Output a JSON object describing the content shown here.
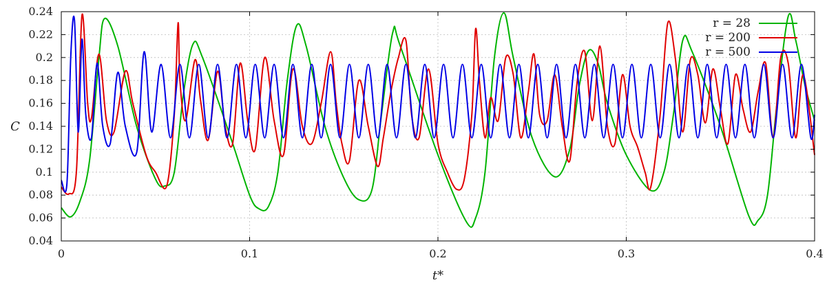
{
  "chart_data": {
    "type": "line",
    "xlabel": "t*",
    "ylabel": "C",
    "xlim": [
      0,
      0.4
    ],
    "ylim": [
      0.04,
      0.24
    ],
    "xticks": [
      "0",
      "0.1",
      "0.2",
      "0.3",
      "0.4"
    ],
    "yticks": [
      "0.04",
      "0.06",
      "0.08",
      "0.1",
      "0.12",
      "0.14",
      "0.16",
      "0.18",
      "0.2",
      "0.22",
      "0.24"
    ],
    "grid": true,
    "legend_position": "top-right",
    "series": [
      {
        "name": "r = 28",
        "color": "#00b400",
        "x": [
          0,
          0.005,
          0.01,
          0.015,
          0.02,
          0.023,
          0.03,
          0.04,
          0.05,
          0.055,
          0.06,
          0.065,
          0.07,
          0.075,
          0.09,
          0.1,
          0.105,
          0.11,
          0.115,
          0.12,
          0.125,
          0.13,
          0.14,
          0.15,
          0.158,
          0.165,
          0.17,
          0.176,
          0.18,
          0.2,
          0.215,
          0.22,
          0.225,
          0.23,
          0.235,
          0.24,
          0.25,
          0.262,
          0.27,
          0.275,
          0.28,
          0.285,
          0.29,
          0.3,
          0.313,
          0.32,
          0.325,
          0.33,
          0.335,
          0.35,
          0.365,
          0.37,
          0.375,
          0.38,
          0.386,
          0.39,
          0.395,
          0.4
        ],
        "values": [
          0.069,
          0.061,
          0.075,
          0.11,
          0.2,
          0.234,
          0.21,
          0.14,
          0.094,
          0.088,
          0.1,
          0.17,
          0.212,
          0.2,
          0.13,
          0.08,
          0.068,
          0.07,
          0.1,
          0.18,
          0.228,
          0.21,
          0.14,
          0.095,
          0.076,
          0.085,
          0.15,
          0.222,
          0.21,
          0.115,
          0.057,
          0.06,
          0.1,
          0.2,
          0.239,
          0.2,
          0.13,
          0.096,
          0.12,
          0.175,
          0.206,
          0.195,
          0.16,
          0.115,
          0.084,
          0.1,
          0.15,
          0.215,
          0.205,
          0.14,
          0.062,
          0.058,
          0.08,
          0.16,
          0.236,
          0.215,
          0.175,
          0.145
        ]
      },
      {
        "name": "r = 200",
        "color": "#e00000",
        "x": [
          0,
          0.004,
          0.008,
          0.011,
          0.014,
          0.016,
          0.02,
          0.024,
          0.028,
          0.034,
          0.038,
          0.045,
          0.05,
          0.056,
          0.06,
          0.062,
          0.063,
          0.066,
          0.071,
          0.074,
          0.078,
          0.083,
          0.087,
          0.091,
          0.095,
          0.099,
          0.103,
          0.108,
          0.113,
          0.118,
          0.123,
          0.128,
          0.133,
          0.138,
          0.143,
          0.146,
          0.149,
          0.153,
          0.158,
          0.163,
          0.168,
          0.171,
          0.175,
          0.179,
          0.183,
          0.186,
          0.19,
          0.195,
          0.2,
          0.205,
          0.21,
          0.214,
          0.218,
          0.22,
          0.222,
          0.225,
          0.228,
          0.232,
          0.236,
          0.24,
          0.244,
          0.248,
          0.251,
          0.254,
          0.258,
          0.262,
          0.266,
          0.27,
          0.274,
          0.278,
          0.282,
          0.286,
          0.29,
          0.294,
          0.298,
          0.302,
          0.306,
          0.31,
          0.313,
          0.318,
          0.322,
          0.326,
          0.33,
          0.334,
          0.338,
          0.342,
          0.346,
          0.35,
          0.354,
          0.358,
          0.362,
          0.366,
          0.37,
          0.374,
          0.378,
          0.382,
          0.386,
          0.39,
          0.394,
          0.4
        ],
        "values": [
          0.087,
          0.081,
          0.1,
          0.237,
          0.16,
          0.147,
          0.203,
          0.145,
          0.135,
          0.188,
          0.16,
          0.115,
          0.1,
          0.088,
          0.15,
          0.23,
          0.18,
          0.145,
          0.198,
          0.162,
          0.128,
          0.188,
          0.14,
          0.125,
          0.195,
          0.145,
          0.12,
          0.2,
          0.145,
          0.115,
          0.19,
          0.14,
          0.125,
          0.16,
          0.205,
          0.16,
          0.125,
          0.11,
          0.18,
          0.14,
          0.105,
          0.13,
          0.17,
          0.2,
          0.215,
          0.15,
          0.13,
          0.19,
          0.125,
          0.1,
          0.085,
          0.094,
          0.15,
          0.225,
          0.18,
          0.13,
          0.165,
          0.145,
          0.2,
          0.185,
          0.13,
          0.17,
          0.203,
          0.15,
          0.145,
          0.185,
          0.14,
          0.11,
          0.18,
          0.205,
          0.145,
          0.21,
          0.14,
          0.125,
          0.185,
          0.14,
          0.122,
          0.1,
          0.087,
          0.15,
          0.23,
          0.2,
          0.135,
          0.198,
          0.185,
          0.143,
          0.19,
          0.155,
          0.125,
          0.185,
          0.155,
          0.135,
          0.17,
          0.195,
          0.13,
          0.2,
          0.195,
          0.13,
          0.185,
          0.115
        ]
      },
      {
        "name": "r = 500",
        "color": "#0000e6",
        "x": [
          0,
          0.003,
          0.005,
          0.007,
          0.009,
          0.011,
          0.013,
          0.016,
          0.019,
          0.022,
          0.026,
          0.03,
          0.034,
          0.04,
          0.044,
          0.048,
          0.053,
          0.058,
          0.063,
          0.068,
          0.073,
          0.078,
          0.083,
          0.088,
          0.093,
          0.098,
          0.103,
          0.108,
          0.113,
          0.118,
          0.123,
          0.128,
          0.133,
          0.138,
          0.143,
          0.148,
          0.153,
          0.158,
          0.163,
          0.168,
          0.173,
          0.178,
          0.183,
          0.188,
          0.193,
          0.198,
          0.203,
          0.208,
          0.213,
          0.218,
          0.223,
          0.228,
          0.233,
          0.238,
          0.243,
          0.248,
          0.253,
          0.258,
          0.263,
          0.268,
          0.273,
          0.278,
          0.283,
          0.288,
          0.293,
          0.298,
          0.303,
          0.308,
          0.313,
          0.318,
          0.323,
          0.328,
          0.333,
          0.338,
          0.343,
          0.348,
          0.353,
          0.358,
          0.363,
          0.368,
          0.373,
          0.378,
          0.383,
          0.388,
          0.393,
          0.398,
          0.4
        ],
        "values": [
          0.093,
          0.09,
          0.2,
          0.233,
          0.135,
          0.216,
          0.15,
          0.13,
          0.195,
          0.14,
          0.125,
          0.187,
          0.14,
          0.117,
          0.205,
          0.135,
          0.194,
          0.13,
          0.194,
          0.13,
          0.194,
          0.13,
          0.194,
          0.13,
          0.194,
          0.13,
          0.194,
          0.13,
          0.194,
          0.13,
          0.194,
          0.13,
          0.194,
          0.13,
          0.194,
          0.13,
          0.194,
          0.13,
          0.194,
          0.13,
          0.194,
          0.13,
          0.194,
          0.13,
          0.194,
          0.13,
          0.194,
          0.13,
          0.194,
          0.13,
          0.194,
          0.13,
          0.194,
          0.13,
          0.194,
          0.13,
          0.194,
          0.13,
          0.194,
          0.13,
          0.194,
          0.13,
          0.194,
          0.13,
          0.194,
          0.13,
          0.194,
          0.13,
          0.194,
          0.13,
          0.194,
          0.13,
          0.194,
          0.13,
          0.194,
          0.13,
          0.194,
          0.13,
          0.194,
          0.13,
          0.194,
          0.13,
          0.194,
          0.13,
          0.194,
          0.13,
          0.15
        ]
      }
    ]
  }
}
